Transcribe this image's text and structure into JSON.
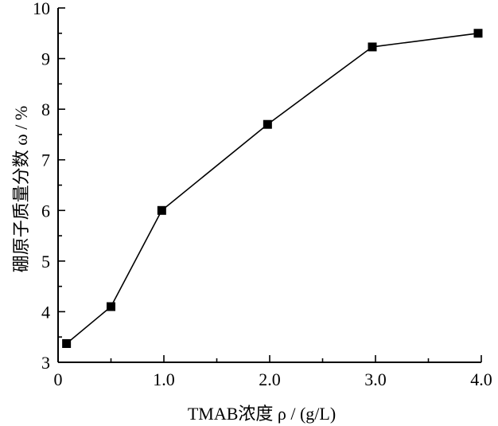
{
  "chart_data": {
    "type": "line",
    "title": "",
    "xlabel": "TMAB浓度 ρ / (g/L)",
    "ylabel": "硼原子质量分数 ω / %",
    "xlim": [
      0,
      4.0
    ],
    "ylim": [
      3,
      10
    ],
    "x_ticks": [
      0,
      1.0,
      2.0,
      3.0,
      4.0
    ],
    "x_tick_labels": [
      "0",
      "1.0",
      "2.0",
      "3.0",
      "4.0"
    ],
    "y_ticks": [
      3,
      4,
      5,
      6,
      7,
      8,
      9,
      10
    ],
    "y_tick_labels": [
      "3",
      "4",
      "5",
      "6",
      "7",
      "8",
      "9",
      "10"
    ],
    "grid": false,
    "series": [
      {
        "x": [
          0.08,
          0.5,
          0.98,
          1.98,
          2.97,
          3.97
        ],
        "y": [
          3.37,
          4.1,
          6.0,
          7.7,
          9.23,
          9.5
        ],
        "marker": "square",
        "color": "#000000"
      }
    ]
  }
}
